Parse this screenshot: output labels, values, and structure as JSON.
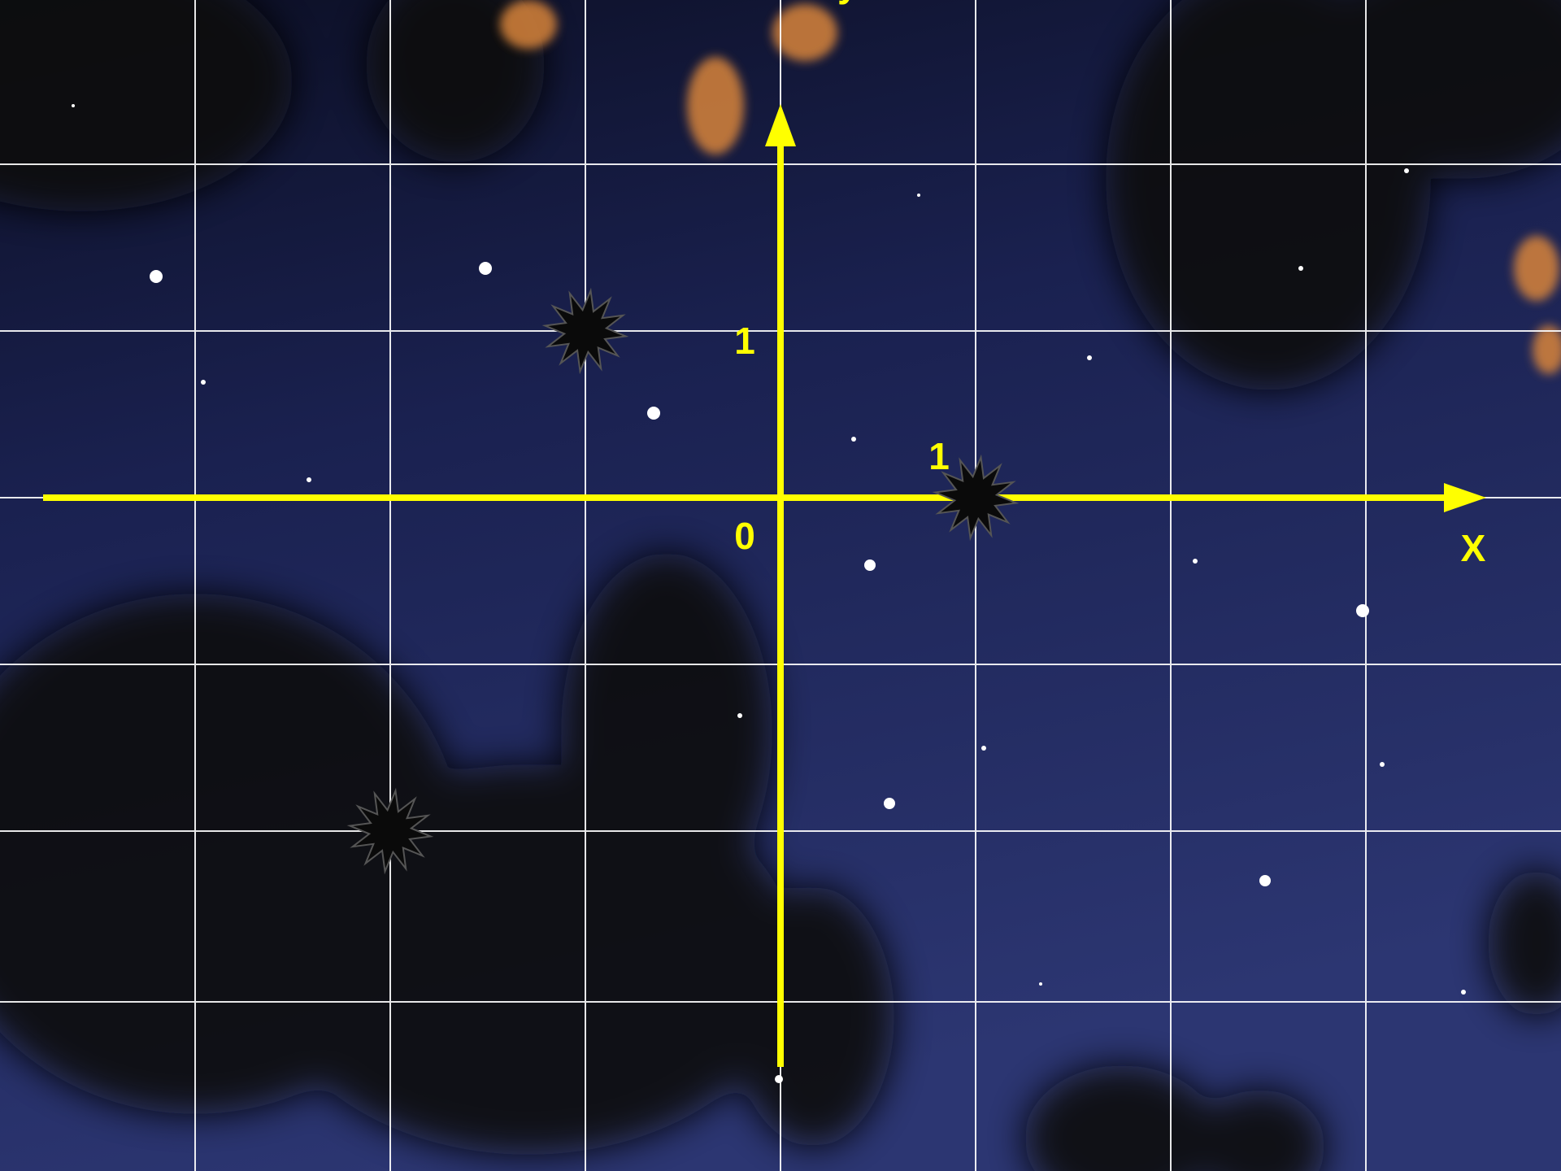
{
  "axes": {
    "x_label": "X",
    "y_label": "y",
    "origin_label": "0",
    "x_unit_label": "1",
    "y_unit_label": "1"
  },
  "points": [
    {
      "x": -1,
      "y": 1
    },
    {
      "x": 1,
      "y": 0
    },
    {
      "x": -2,
      "y": -2
    }
  ]
}
